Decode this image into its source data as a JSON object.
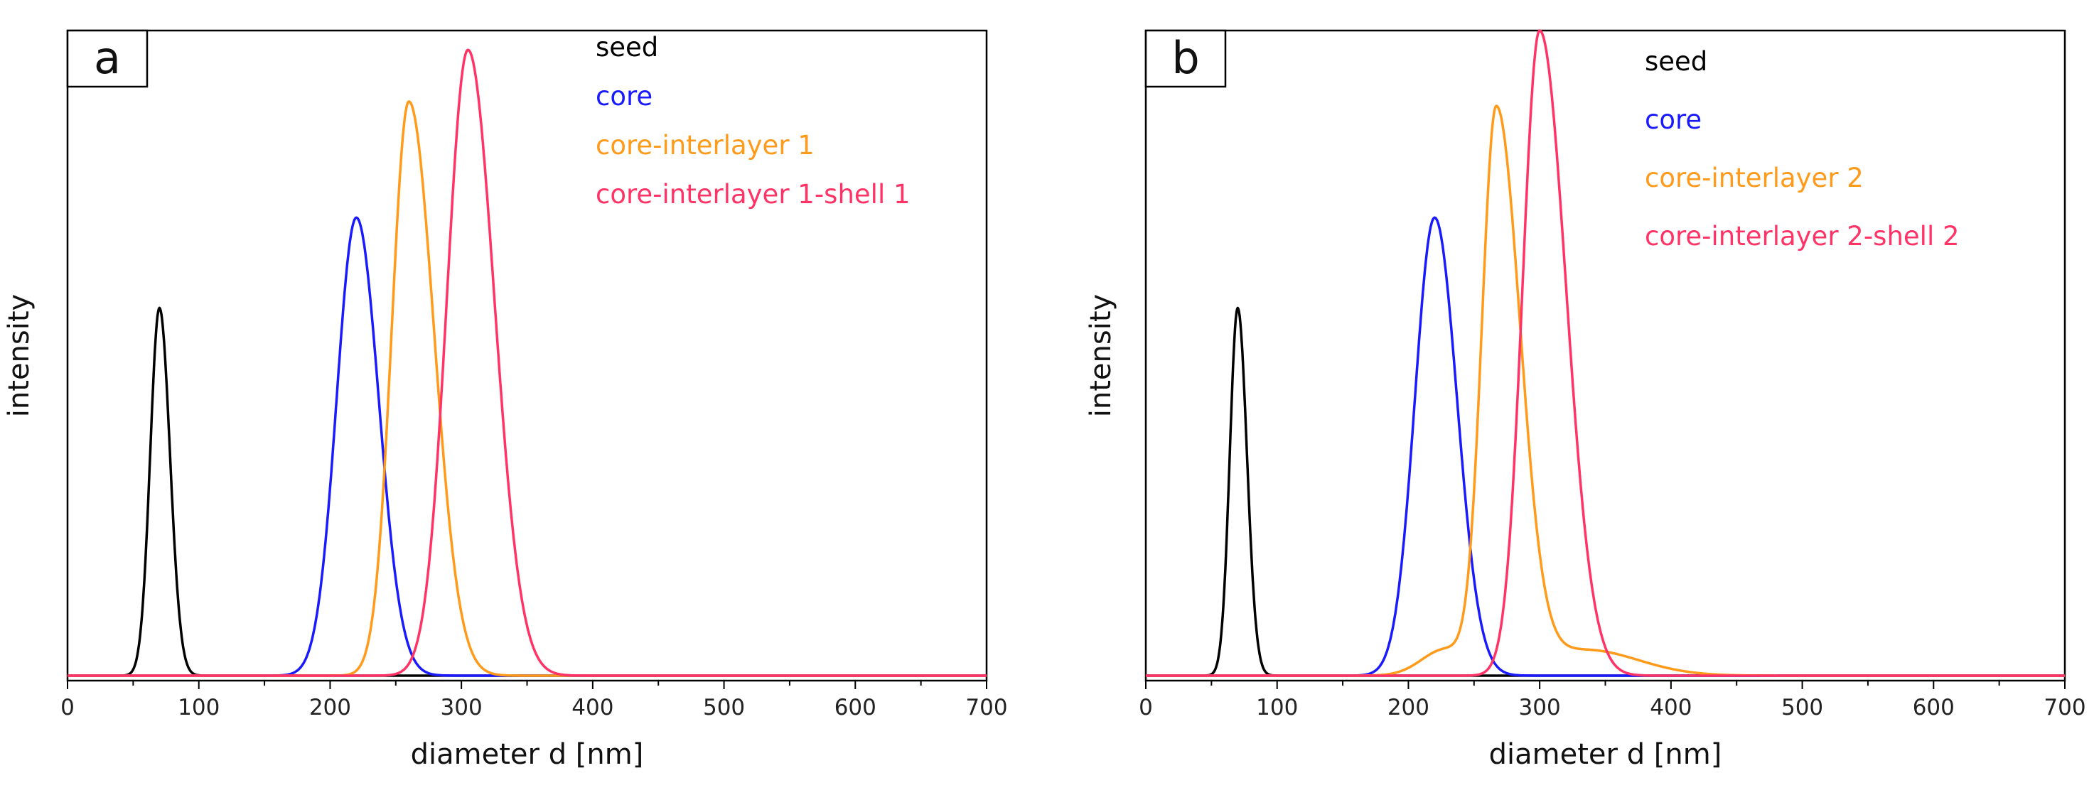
{
  "colors": {
    "seed": "#000000",
    "core": "#1a1aff",
    "interlayer": "#ff9a1a",
    "shell": "#ff3366"
  },
  "chart_data": [
    {
      "type": "line",
      "panel_label": "a",
      "title": "",
      "xlabel": "diameter d [nm]",
      "ylabel": "intensity",
      "xlim": [
        0,
        700
      ],
      "ylim": [
        0,
        1
      ],
      "xticks": [
        0,
        100,
        200,
        300,
        400,
        500,
        600,
        700
      ],
      "grid": false,
      "legend_position": "top-center",
      "series": [
        {
          "name": "seed",
          "color": "#000000",
          "peak_x": 70,
          "peak_y": 0.57,
          "width_left": 7,
          "width_right": 8,
          "tail": []
        },
        {
          "name": "core",
          "color": "#1a1aff",
          "peak_x": 220,
          "peak_y": 0.71,
          "width_left": 15,
          "width_right": 17,
          "tail": []
        },
        {
          "name": "core-interlayer 1",
          "color": "#ff9a1a",
          "peak_x": 260,
          "peak_y": 0.89,
          "width_left": 13,
          "width_right": 19,
          "tail": []
        },
        {
          "name": "core-interlayer 1-shell 1",
          "color": "#ff3366",
          "peak_x": 305,
          "peak_y": 0.97,
          "width_left": 16,
          "width_right": 20,
          "tail": []
        }
      ]
    },
    {
      "type": "line",
      "panel_label": "b",
      "title": "",
      "xlabel": "diameter d [nm]",
      "ylabel": "intensity",
      "xlim": [
        0,
        700
      ],
      "ylim": [
        0,
        1
      ],
      "xticks": [
        0,
        100,
        200,
        300,
        400,
        500,
        600,
        700
      ],
      "grid": false,
      "legend_position": "top-center",
      "series": [
        {
          "name": "seed",
          "color": "#000000",
          "peak_x": 70,
          "peak_y": 0.57,
          "width_left": 6,
          "width_right": 7,
          "tail": []
        },
        {
          "name": "core",
          "color": "#1a1aff",
          "peak_x": 220,
          "peak_y": 0.71,
          "width_left": 15,
          "width_right": 17,
          "tail": []
        },
        {
          "name": "core-interlayer 2",
          "color": "#ff9a1a",
          "peak_x": 267,
          "peak_y": 0.87,
          "width_left": 11,
          "width_right": 18,
          "tail": [
            {
              "x": 228,
              "y": 0.04,
              "w": 18
            },
            {
              "x": 335,
              "y": 0.04,
              "w": 40
            }
          ]
        },
        {
          "name": "core-interlayer 2-shell 2",
          "color": "#ff3366",
          "peak_x": 300,
          "peak_y": 1.0,
          "width_left": 13,
          "width_right": 20,
          "tail": []
        }
      ]
    }
  ]
}
